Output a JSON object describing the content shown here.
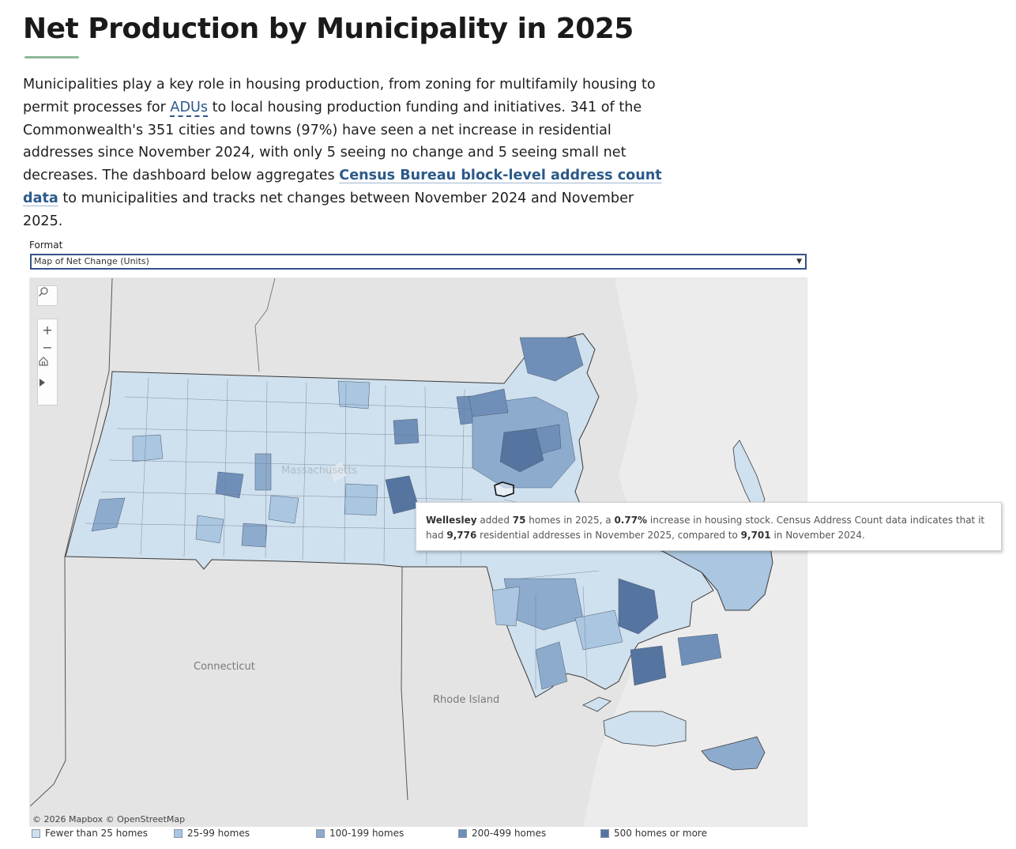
{
  "page": {
    "title": "Net Production by Municipality in 2025",
    "intro": {
      "p1": "Municipalities play a key role in housing production, from zoning for multifamily housing to permit processes for ",
      "adu": "ADUs",
      "p2": " to local housing production funding and initiatives. 341 of the Commonwealth's 351 cities and towns (97%) have seen a net increase in residential addresses since November 2024, with only 5 seeing no change and 5 seeing small net decreases. The dashboard below aggregates ",
      "link": "Census Bureau block-level address count data",
      "p3": " to municipalities and tracks net changes between November 2024 and November 2025."
    }
  },
  "format": {
    "label": "Format",
    "selected": "Map of Net Change (Units)"
  },
  "map": {
    "labels": {
      "massachusetts": "Massachusetts",
      "connecticut": "Connecticut",
      "rhode_island": "Rhode Island"
    },
    "attribution": "© 2026 Mapbox  © OpenStreetMap",
    "tools": [
      "search-icon",
      "zoom-in-icon",
      "zoom-out-icon",
      "home-icon",
      "play-icon"
    ]
  },
  "tooltip": {
    "town": "Wellesley",
    "t1": " added ",
    "homes": "75",
    "t2": " homes in 2025, a ",
    "pct": "0.77%",
    "t3": " increase in housing stock. Census Address Count data indicates that it had ",
    "addr_2025": "9,776",
    "t4": " residential addresses in November 2025, compared to ",
    "addr_2024": "9,701",
    "t5": " in November 2024."
  },
  "legend": [
    {
      "label": "Fewer than 25 homes",
      "color": "#cfe0ee"
    },
    {
      "label": "25-99 homes",
      "color": "#aac6e0"
    },
    {
      "label": "100-199 homes",
      "color": "#8dabcd"
    },
    {
      "label": "200-499 homes",
      "color": "#6f8fb8"
    },
    {
      "label": "500 homes or more",
      "color": "#5674a0"
    }
  ]
}
